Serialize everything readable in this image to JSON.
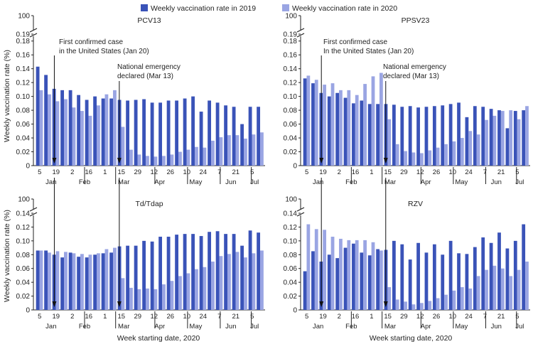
{
  "legend": {
    "series_2019": "Weekly vaccination rate in 2019",
    "series_2020": "Weekly vaccination rate in 2020"
  },
  "y_axis_label": "Weekly vaccination rate (%)",
  "x_axis_label": "Week starting date, 2020",
  "annotations": {
    "first_case_a": "First confirmed case",
    "first_case_b_left": "in the United States (Jan 20)",
    "first_case_b_right": "In the United States (Jan 20)",
    "emergency_a": "National emergency",
    "emergency_b": "declared (Mar 13)"
  },
  "colors": {
    "series_2019": "#3a53b8",
    "series_2020": "#9aa5e3",
    "axis": "#222222",
    "arrow": "#111111"
  },
  "chart_data": [
    {
      "type": "bar",
      "title": "PCV13",
      "ylabel": "Weekly vaccination rate (%)",
      "xlabel": "",
      "ylim": [
        0,
        0.19
      ],
      "y_break": {
        "from": 0.19,
        "to": 100
      },
      "yticks": [
        0,
        0.02,
        0.04,
        0.06,
        0.08,
        0.1,
        0.12,
        0.14,
        0.16,
        0.18,
        0.19,
        100
      ],
      "week_ticks": [
        "5",
        "19",
        "2",
        "16",
        "1",
        "15",
        "29",
        "12",
        "26",
        "10",
        "24",
        "7",
        "21",
        "5"
      ],
      "months": [
        "Jan",
        "Feb",
        "Mar",
        "Apr",
        "May",
        "Jun",
        "Jul"
      ],
      "series": [
        {
          "name": "Weekly vaccination rate in 2019",
          "values": [
            0.143,
            0.131,
            0.111,
            0.109,
            0.109,
            0.102,
            0.095,
            0.1,
            0.097,
            0.097,
            0.095,
            0.094,
            0.095,
            0.096,
            0.091,
            0.091,
            0.094,
            0.094,
            0.097,
            0.1,
            0.078,
            0.094,
            0.091,
            0.087,
            0.085,
            0.06,
            0.085,
            0.085
          ]
        },
        {
          "name": "Weekly vaccination rate in 2020",
          "values": [
            0.109,
            0.103,
            0.093,
            0.096,
            0.084,
            0.079,
            0.072,
            0.087,
            0.103,
            0.109,
            0.056,
            0.023,
            0.016,
            0.014,
            0.013,
            0.014,
            0.016,
            0.02,
            0.023,
            0.027,
            0.026,
            0.036,
            0.041,
            0.044,
            0.044,
            0.039,
            0.045,
            0.048
          ]
        }
      ]
    },
    {
      "type": "bar",
      "title": "PPSV23",
      "ylabel": "",
      "xlabel": "",
      "ylim": [
        0,
        0.19
      ],
      "y_break": {
        "from": 0.19,
        "to": 100
      },
      "yticks": [
        0,
        0.02,
        0.04,
        0.06,
        0.08,
        0.1,
        0.12,
        0.14,
        0.16,
        0.18,
        0.19,
        100
      ],
      "week_ticks": [
        "5",
        "19",
        "2",
        "16",
        "1",
        "15",
        "29",
        "12",
        "26",
        "10",
        "24",
        "7",
        "21",
        "5"
      ],
      "months": [
        "Jan",
        "Feb",
        "Mar",
        "Apr",
        "May",
        "Jun",
        "Jul"
      ],
      "series": [
        {
          "name": "Weekly vaccination rate in 2019",
          "values": [
            0.126,
            0.119,
            0.105,
            0.1,
            0.105,
            0.098,
            0.09,
            0.094,
            0.089,
            0.089,
            0.089,
            0.088,
            0.085,
            0.086,
            0.084,
            0.085,
            0.086,
            0.087,
            0.089,
            0.091,
            0.07,
            0.086,
            0.085,
            0.082,
            0.08,
            0.054,
            0.079,
            0.08
          ]
        },
        {
          "name": "Weekly vaccination rate in 2020",
          "values": [
            0.13,
            0.124,
            0.117,
            0.119,
            0.109,
            0.109,
            0.102,
            0.118,
            0.129,
            0.134,
            0.067,
            0.031,
            0.021,
            0.019,
            0.018,
            0.022,
            0.026,
            0.031,
            0.035,
            0.04,
            0.05,
            0.045,
            0.066,
            0.072,
            0.079,
            0.08,
            0.067,
            0.086
          ]
        }
      ]
    },
    {
      "type": "bar",
      "title": "Td/Tdap",
      "ylabel": "Weekly vaccination rate (%)",
      "xlabel": "Week starting date, 2020",
      "ylim": [
        0,
        0.14
      ],
      "y_break": {
        "from": 0.14,
        "to": 100
      },
      "yticks": [
        0,
        0.02,
        0.04,
        0.06,
        0.08,
        0.1,
        0.12,
        0.14,
        100
      ],
      "week_ticks": [
        "5",
        "19",
        "2",
        "16",
        "1",
        "15",
        "29",
        "12",
        "26",
        "10",
        "24",
        "7",
        "21",
        "5"
      ],
      "months": [
        "Jan",
        "Feb",
        "Mar",
        "Apr",
        "May",
        "Jun",
        "Jul"
      ],
      "series": [
        {
          "name": "Weekly vaccination rate in 2019",
          "values": [
            0.086,
            0.086,
            0.08,
            0.076,
            0.083,
            0.077,
            0.076,
            0.08,
            0.082,
            0.083,
            0.092,
            0.093,
            0.093,
            0.1,
            0.099,
            0.106,
            0.106,
            0.109,
            0.11,
            0.11,
            0.107,
            0.113,
            0.114,
            0.11,
            0.11,
            0.093,
            0.115,
            0.112
          ]
        },
        {
          "name": "Weekly vaccination rate in 2020",
          "values": [
            0.086,
            0.083,
            0.085,
            0.084,
            0.082,
            0.081,
            0.08,
            0.082,
            0.088,
            0.09,
            0.046,
            0.032,
            0.03,
            0.031,
            0.03,
            0.037,
            0.042,
            0.049,
            0.053,
            0.059,
            0.062,
            0.07,
            0.078,
            0.081,
            0.084,
            0.076,
            0.082,
            0.086
          ]
        }
      ]
    },
    {
      "type": "bar",
      "title": "RZV",
      "ylabel": "",
      "xlabel": "Week starting date, 2020",
      "ylim": [
        0,
        0.14
      ],
      "y_break": {
        "from": 0.14,
        "to": 100
      },
      "yticks": [
        0,
        0.02,
        0.04,
        0.06,
        0.08,
        0.1,
        0.12,
        0.14,
        100
      ],
      "week_ticks": [
        "5",
        "19",
        "2",
        "16",
        "1",
        "15",
        "29",
        "12",
        "26",
        "10",
        "24",
        "7",
        "21",
        "5"
      ],
      "months": [
        "Jan",
        "Feb",
        "Mar",
        "Apr",
        "May",
        "Jun",
        "Jul"
      ],
      "series": [
        {
          "name": "Weekly vaccination rate in 2019",
          "values": [
            0.056,
            0.085,
            0.07,
            0.08,
            0.075,
            0.09,
            0.096,
            0.083,
            0.079,
            0.088,
            0.087,
            0.1,
            0.095,
            0.073,
            0.097,
            0.083,
            0.095,
            0.08,
            0.1,
            0.082,
            0.081,
            0.091,
            0.105,
            0.097,
            0.112,
            0.089,
            0.1,
            0.124
          ]
        },
        {
          "name": "Weekly vaccination rate in 2020",
          "values": [
            0.124,
            0.117,
            0.116,
            0.106,
            0.103,
            0.101,
            0.101,
            0.101,
            0.098,
            0.086,
            0.033,
            0.015,
            0.012,
            0.008,
            0.01,
            0.013,
            0.017,
            0.022,
            0.028,
            0.033,
            0.031,
            0.049,
            0.058,
            0.064,
            0.06,
            0.049,
            0.058,
            0.07
          ]
        }
      ]
    }
  ]
}
